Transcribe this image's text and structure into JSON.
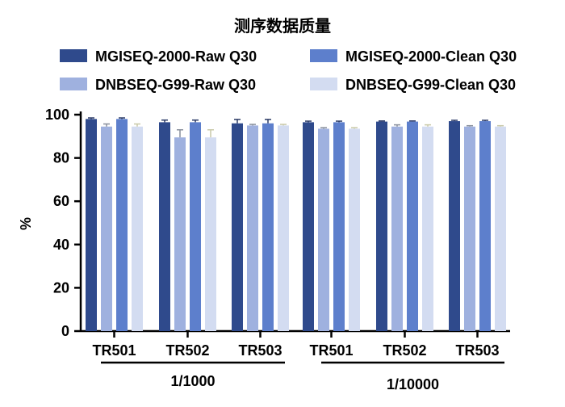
{
  "chart_data": {
    "type": "bar",
    "title": "测序数据质量",
    "ylabel": "%",
    "xlabel": "",
    "ylim": [
      0,
      100
    ],
    "yticks": [
      0,
      20,
      40,
      60,
      80,
      100
    ],
    "categories": [
      "TR501",
      "TR502",
      "TR503",
      "TR501",
      "TR502",
      "TR503"
    ],
    "groups": [
      {
        "label": "1/1000",
        "categories": [
          0,
          1,
          2
        ]
      },
      {
        "label": "1/10000",
        "categories": [
          3,
          4,
          5
        ]
      }
    ],
    "series": [
      {
        "name": "MGISEQ-2000-Raw Q30",
        "color": "#2f4a8c",
        "values": [
          98.0,
          96.5,
          96.0,
          96.5,
          96.8,
          97.0
        ],
        "errors": [
          0.5,
          1.0,
          1.8,
          0.5,
          0.3,
          0.4
        ]
      },
      {
        "name": "DNBSEQ-G99-Raw Q30",
        "color": "#9fb1df",
        "values": [
          94.5,
          89.5,
          95.0,
          93.5,
          94.5,
          94.5
        ],
        "errors": [
          1.2,
          3.5,
          0.5,
          0.5,
          0.8,
          0.4
        ]
      },
      {
        "name": "MGISEQ-2000-Clean Q30",
        "color": "#5d7fcc",
        "values": [
          98.0,
          96.5,
          96.0,
          96.5,
          96.8,
          97.0
        ],
        "errors": [
          0.5,
          1.0,
          1.8,
          0.5,
          0.3,
          0.4
        ]
      },
      {
        "name": "DNBSEQ-G99-Clean Q30",
        "color": "#d3dcf1",
        "values": [
          94.5,
          89.5,
          95.0,
          93.5,
          94.5,
          94.5
        ],
        "errors": [
          1.2,
          3.5,
          0.5,
          0.5,
          0.8,
          0.4
        ]
      }
    ],
    "legend": {
      "placement": "top",
      "entries": [
        {
          "label": "MGISEQ-2000-Raw Q30",
          "color": "#2f4a8c"
        },
        {
          "label": "MGISEQ-2000-Clean Q30",
          "color": "#5d7fcc"
        },
        {
          "label": "DNBSEQ-G99-Raw Q30",
          "color": "#9fb1df"
        },
        {
          "label": "DNBSEQ-G99-Clean Q30",
          "color": "#d3dcf1"
        }
      ]
    },
    "grid": false
  }
}
